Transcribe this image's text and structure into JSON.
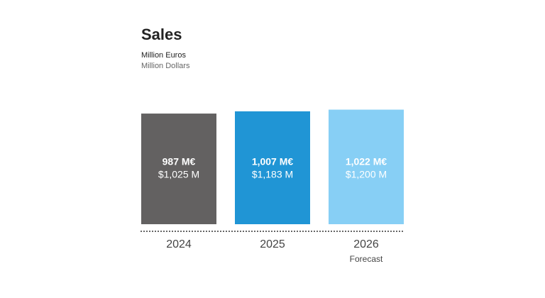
{
  "chart_data": {
    "type": "bar",
    "title": "Sales",
    "categories": [
      "2024",
      "2025",
      "2026"
    ],
    "colors": [
      "#636161",
      "#2095d5",
      "#87cff5"
    ],
    "series": [
      {
        "name": "Million Euros",
        "values": [
          987,
          1007,
          1022
        ],
        "value_labels": [
          "987 M€",
          "1,007 M€",
          "1,022 M€"
        ]
      },
      {
        "name": "Million Dollars",
        "values": [
          1025,
          1183,
          1200
        ],
        "value_labels": [
          "$1,025 M",
          "$1,183 M",
          "$1,200 M"
        ]
      }
    ],
    "annotations": [
      {
        "text": "Forecast",
        "x": "2026"
      }
    ]
  }
}
